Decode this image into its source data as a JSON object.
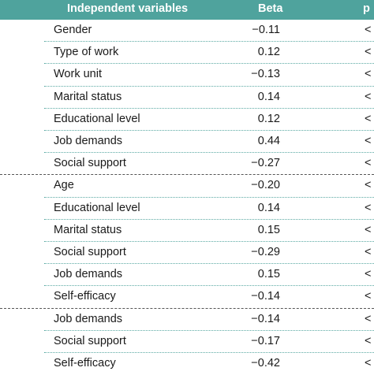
{
  "table": {
    "header": {
      "independent_variables": "Independent variables",
      "beta": "Beta",
      "p_partial": "p"
    },
    "groups": [
      {
        "rows": [
          {
            "variable": "Gender",
            "beta": "−0.11",
            "p": "<"
          },
          {
            "variable": "Type of work",
            "beta": "0.12",
            "p": "<"
          },
          {
            "variable": "Work unit",
            "beta": "−0.13",
            "p": "<"
          },
          {
            "variable": "Marital status",
            "beta": "0.14",
            "p": "<"
          },
          {
            "variable": "Educational level",
            "beta": "0.12",
            "p": "<"
          },
          {
            "variable": "Job demands",
            "beta": "0.44",
            "p": "<"
          },
          {
            "variable": "Social support",
            "beta": "−0.27",
            "p": "<"
          }
        ]
      },
      {
        "rows": [
          {
            "variable": "Age",
            "beta": "−0.20",
            "p": "<"
          },
          {
            "variable": "Educational level",
            "beta": "0.14",
            "p": "<"
          },
          {
            "variable": "Marital status",
            "beta": "0.15",
            "p": "<"
          },
          {
            "variable": "Social support",
            "beta": "−0.29",
            "p": "<"
          },
          {
            "variable": "Job demands",
            "beta": "0.15",
            "p": "<"
          },
          {
            "variable": "Self-efficacy",
            "beta": "−0.14",
            "p": "<"
          }
        ]
      },
      {
        "rows": [
          {
            "variable": "Job demands",
            "beta": "−0.14",
            "p": "<"
          },
          {
            "variable": "Social support",
            "beta": "−0.17",
            "p": "<"
          },
          {
            "variable": "Self-efficacy",
            "beta": "−0.42",
            "p": "<"
          }
        ]
      }
    ]
  },
  "colors": {
    "header_bg": "#4fa39d",
    "header_text": "#ffffff",
    "row_rule": "#5aa9a3"
  }
}
